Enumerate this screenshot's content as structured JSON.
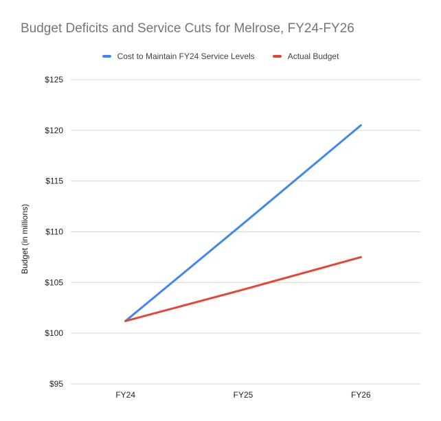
{
  "chart_data": {
    "type": "line",
    "title": "Budget Deficits and Service Cuts for Melrose, FY24-FY26",
    "categories": [
      "FY24",
      "FY25",
      "FY26"
    ],
    "series": [
      {
        "name": "Cost to Maintain FY24 Service Levels",
        "color": "#4285f4",
        "values": [
          101.2,
          110.8,
          120.5
        ]
      },
      {
        "name": "Actual Budget",
        "color": "#ea4335",
        "values": [
          101.2,
          104.3,
          107.5
        ]
      }
    ],
    "xlabel": "",
    "ylabel": "Budget (in millions)",
    "ylim": [
      95,
      125
    ],
    "y_ticks": [
      95,
      100,
      105,
      110,
      115,
      120,
      125
    ],
    "y_tick_labels": [
      "$95",
      "$100",
      "$105",
      "$110",
      "$115",
      "$120",
      "$125"
    ],
    "grid": true,
    "legend_position": "top",
    "colors": {
      "title_text": "#757575",
      "axis_text": "#222222",
      "legend_text": "#424242",
      "gridline": "#d6d6d6",
      "background": "#ffffff"
    }
  }
}
